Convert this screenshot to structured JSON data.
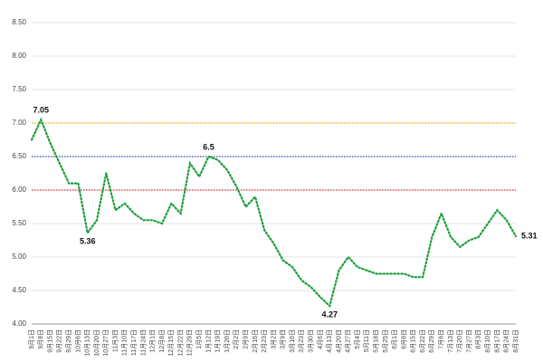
{
  "chart_data": {
    "type": "line",
    "categories": [
      "9月1日",
      "9月8日",
      "9月15日",
      "9月22日",
      "9月29日",
      "10月6日",
      "10月13日",
      "10月20日",
      "10月27日",
      "11月3日",
      "11月10日",
      "11月17日",
      "11月24日",
      "12月1日",
      "12月8日",
      "12月15日",
      "12月22日",
      "12月29日",
      "1月5日",
      "1月12日",
      "1月19日",
      "1月26日",
      "2月2日",
      "2月9日",
      "2月16日",
      "2月23日",
      "3月2日",
      "3月9日",
      "3月16日",
      "3月23日",
      "3月30日",
      "4月6日",
      "4月13日",
      "4月20日",
      "4月27日",
      "5月4日",
      "5月11日",
      "5月18日",
      "5月25日",
      "6月1日",
      "6月8日",
      "6月15日",
      "6月22日",
      "6月29日",
      "7月6日",
      "7月13日",
      "7月20日",
      "7月27日",
      "8月3日",
      "8月10日",
      "8月17日",
      "8月24日",
      "8月31日"
    ],
    "series": [
      {
        "color": "#1e9e3c",
        "values": [
          6.75,
          7.05,
          6.7,
          6.4,
          6.1,
          6.1,
          5.36,
          5.55,
          6.25,
          5.7,
          5.8,
          5.65,
          5.55,
          5.55,
          5.5,
          5.8,
          5.65,
          6.4,
          6.2,
          6.5,
          6.45,
          6.3,
          6.05,
          5.75,
          5.9,
          5.4,
          5.2,
          4.95,
          4.85,
          4.65,
          4.55,
          4.4,
          4.27,
          4.8,
          5.0,
          4.85,
          4.8,
          4.75,
          4.75,
          4.75,
          4.75,
          4.7,
          4.7,
          5.3,
          5.65,
          5.3,
          5.15,
          5.25,
          5.3,
          5.5,
          5.7,
          5.55,
          5.31
        ],
        "value_labels": [
          null,
          "7.05",
          null,
          null,
          null,
          null,
          "5.36",
          null,
          null,
          null,
          null,
          null,
          null,
          null,
          null,
          null,
          null,
          null,
          null,
          "6.5",
          null,
          null,
          null,
          null,
          null,
          null,
          null,
          null,
          null,
          null,
          null,
          null,
          "4.27",
          null,
          null,
          null,
          null,
          null,
          null,
          null,
          null,
          null,
          null,
          null,
          null,
          null,
          null,
          null,
          null,
          null,
          null,
          null,
          "5.31"
        ]
      }
    ],
    "reference_lines": [
      {
        "value": 7,
        "color": "#f0b400"
      },
      {
        "value": 6.5,
        "color": "#3a4fc0"
      },
      {
        "value": 6,
        "color": "#d03030"
      }
    ],
    "ylim": [
      4,
      8.5
    ],
    "yticks": [
      {
        "value": 4,
        "label": "4.00"
      },
      {
        "value": 4.5,
        "label": "4.50"
      },
      {
        "value": 5,
        "label": "5.00"
      },
      {
        "value": 5.5,
        "label": "5.50"
      },
      {
        "value": 6,
        "label": "6.00"
      },
      {
        "value": 6.5,
        "label": "6.50"
      },
      {
        "value": 7,
        "label": "7.00"
      },
      {
        "value": 7.5,
        "label": "7.50"
      },
      {
        "value": 8,
        "label": "8.00"
      },
      {
        "value": 8.5,
        "label": "8.50"
      }
    ],
    "grid": true
  }
}
